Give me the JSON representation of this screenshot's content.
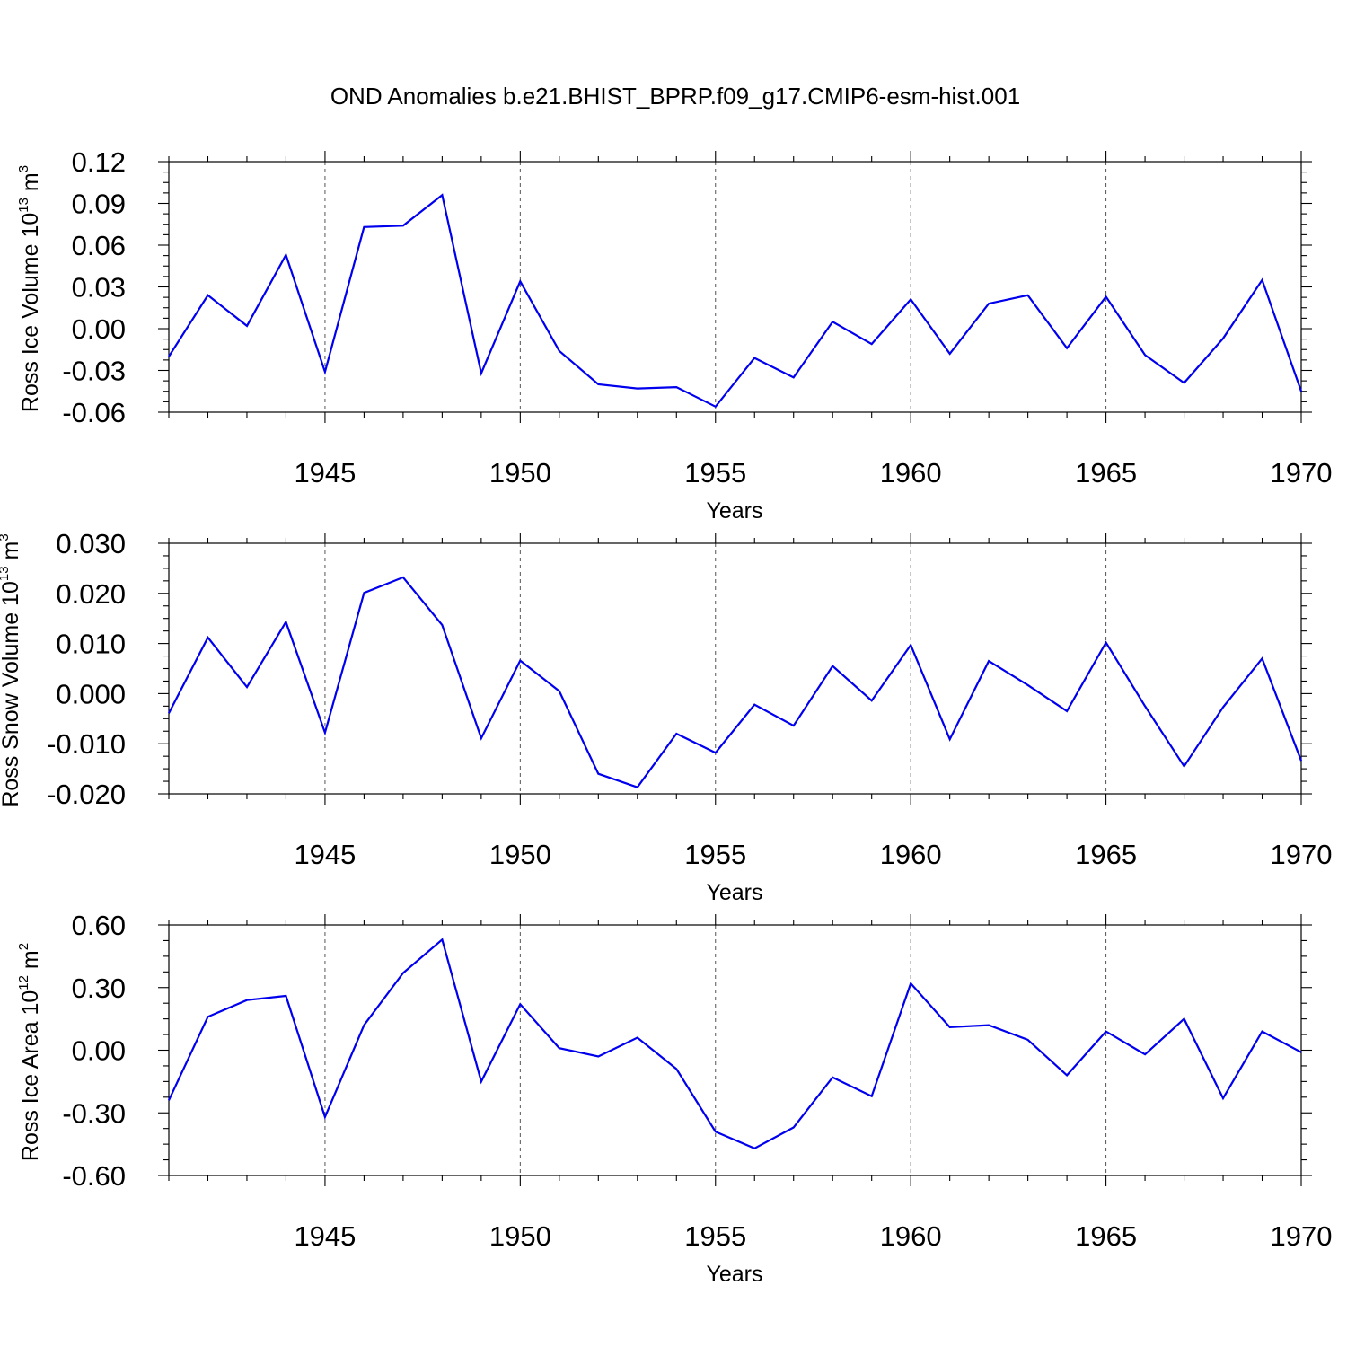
{
  "figure": {
    "title": "OND Anomalies b.e21.BHIST_BPRP.f09_g17.CMIP6-esm-hist.001"
  },
  "colors": {
    "line": "#0000ee",
    "grid": "#555555",
    "frame": "#000000"
  },
  "chart_data": [
    {
      "type": "line",
      "title": "",
      "xlabel": "Years",
      "ylabel": {
        "base": "Ross Ice Volume 10",
        "exp": "13",
        "unit": " m",
        "unit_exp": "3"
      },
      "xlim": [
        1941,
        1970
      ],
      "ylim": [
        -0.06,
        0.12
      ],
      "xticks": [
        1945,
        1950,
        1955,
        1960,
        1965,
        1970
      ],
      "yticks": [
        "0.12",
        "0.09",
        "0.06",
        "0.03",
        "0.00",
        "-0.03",
        "-0.06"
      ],
      "ytick_values": [
        0.12,
        0.09,
        0.06,
        0.03,
        0.0,
        -0.03,
        -0.06
      ],
      "grid": "vertical dashed at labeled x ticks",
      "x": [
        1941,
        1942,
        1943,
        1944,
        1945,
        1946,
        1947,
        1948,
        1949,
        1950,
        1951,
        1952,
        1953,
        1954,
        1955,
        1956,
        1957,
        1958,
        1959,
        1960,
        1961,
        1962,
        1963,
        1964,
        1965,
        1966,
        1967,
        1968,
        1969,
        1970
      ],
      "values": [
        -0.02,
        0.024,
        0.002,
        0.053,
        -0.031,
        0.073,
        0.074,
        0.096,
        -0.032,
        0.034,
        -0.016,
        -0.04,
        -0.043,
        -0.042,
        -0.056,
        -0.021,
        -0.035,
        0.005,
        -0.011,
        0.021,
        -0.018,
        0.018,
        0.024,
        -0.014,
        0.023,
        -0.019,
        -0.039,
        -0.007,
        0.035,
        -0.045
      ]
    },
    {
      "type": "line",
      "title": "",
      "xlabel": "Years",
      "ylabel": {
        "base": "Ross Snow Volume 10",
        "exp": "13",
        "unit": " m",
        "unit_exp": "3"
      },
      "xlim": [
        1941,
        1970
      ],
      "ylim": [
        -0.02,
        0.03
      ],
      "xticks": [
        1945,
        1950,
        1955,
        1960,
        1965,
        1970
      ],
      "yticks": [
        "0.030",
        "0.020",
        "0.010",
        "0.000",
        "-0.010",
        "-0.020"
      ],
      "ytick_values": [
        0.03,
        0.02,
        0.01,
        0.0,
        -0.01,
        -0.02
      ],
      "grid": "vertical dashed at labeled x ticks",
      "x": [
        1941,
        1942,
        1943,
        1944,
        1945,
        1946,
        1947,
        1948,
        1949,
        1950,
        1951,
        1952,
        1953,
        1954,
        1955,
        1956,
        1957,
        1958,
        1959,
        1960,
        1961,
        1962,
        1963,
        1964,
        1965,
        1966,
        1967,
        1968,
        1969,
        1970
      ],
      "values": [
        -0.0039,
        0.0112,
        0.0013,
        0.0143,
        -0.0078,
        0.0201,
        0.0232,
        0.0137,
        -0.0089,
        0.0066,
        0.0005,
        -0.016,
        -0.0187,
        -0.008,
        -0.0118,
        -0.0022,
        -0.0064,
        0.0055,
        -0.0014,
        0.0097,
        -0.0091,
        0.0065,
        0.0017,
        -0.0035,
        0.0102,
        -0.0025,
        -0.0145,
        -0.0027,
        0.007,
        -0.0134
      ]
    },
    {
      "type": "line",
      "title": "",
      "xlabel": "Years",
      "ylabel": {
        "base": "Ross Ice Area 10",
        "exp": "12",
        "unit": " m",
        "unit_exp": "2"
      },
      "xlim": [
        1941,
        1970
      ],
      "ylim": [
        -0.6,
        0.6
      ],
      "xticks": [
        1945,
        1950,
        1955,
        1960,
        1965,
        1970
      ],
      "yticks": [
        "0.60",
        "0.30",
        "0.00",
        "-0.30",
        "-0.60"
      ],
      "ytick_values": [
        0.6,
        0.3,
        0.0,
        -0.3,
        -0.6
      ],
      "grid": "vertical dashed at labeled x ticks",
      "x": [
        1941,
        1942,
        1943,
        1944,
        1945,
        1946,
        1947,
        1948,
        1949,
        1950,
        1951,
        1952,
        1953,
        1954,
        1955,
        1956,
        1957,
        1958,
        1959,
        1960,
        1961,
        1962,
        1963,
        1964,
        1965,
        1966,
        1967,
        1968,
        1969,
        1970
      ],
      "values": [
        -0.24,
        0.16,
        0.24,
        0.26,
        -0.32,
        0.12,
        0.37,
        0.53,
        -0.15,
        0.22,
        0.01,
        -0.03,
        0.06,
        -0.09,
        -0.39,
        -0.47,
        -0.37,
        -0.13,
        -0.22,
        0.32,
        0.11,
        0.12,
        0.05,
        -0.12,
        0.09,
        -0.02,
        0.15,
        -0.23,
        0.09,
        -0.01
      ]
    }
  ]
}
